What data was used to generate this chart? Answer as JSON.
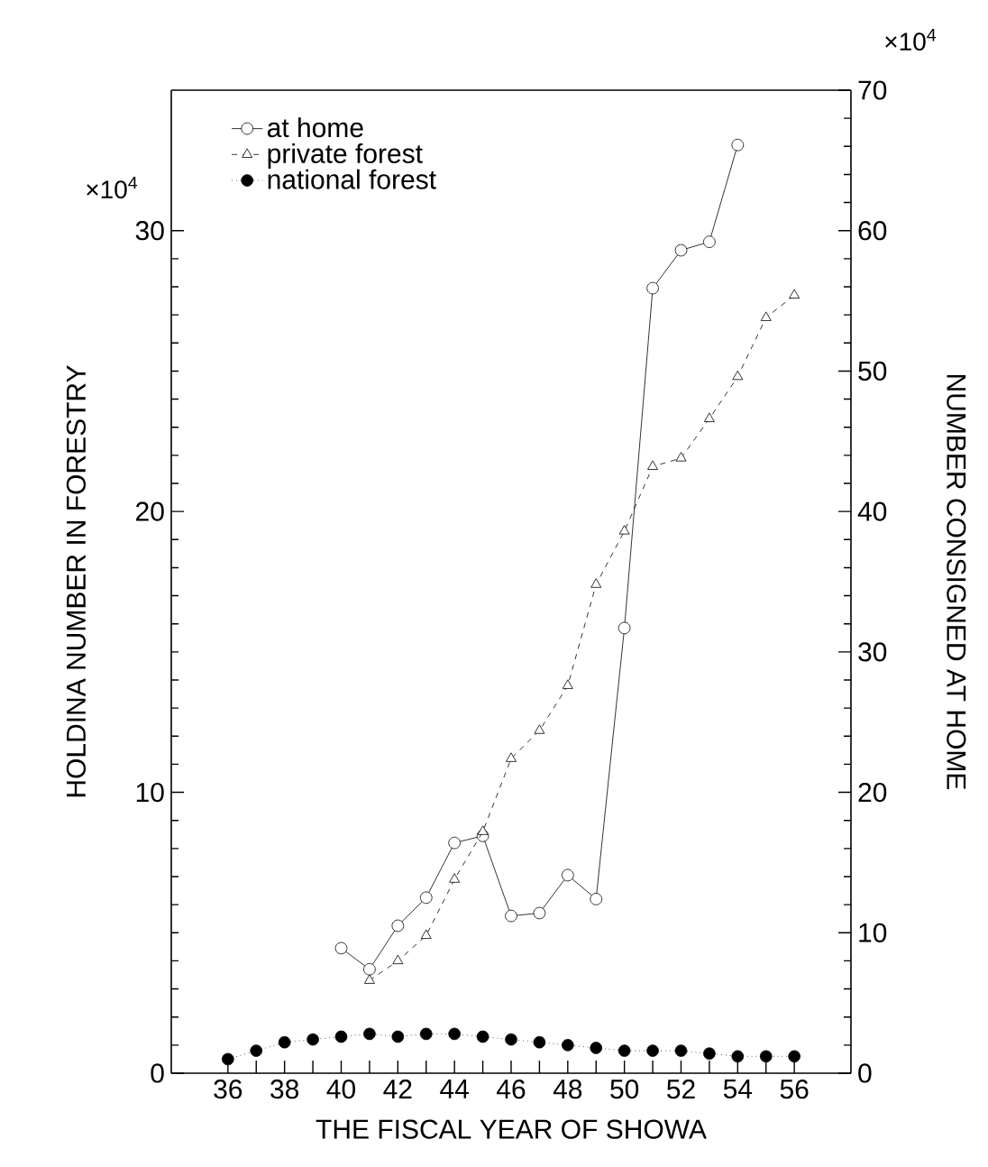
{
  "chart_data": {
    "type": "line",
    "xlabel": "THE FISCAL YEAR OF SHOWA",
    "ylabel": "HOLDINA NUMBER IN FORESTRY",
    "y2label": "NUMBER CONSIGNED AT HOME",
    "annotations": [
      "×10$^{4}$",
      "×10$^{4}$"
    ],
    "xlim": [
      34,
      58
    ],
    "xticks": [
      36,
      {
        "value": 37,
        "label": null
      },
      38,
      {
        "value": 39,
        "label": null
      },
      40,
      {
        "value": 41,
        "label": null
      },
      42,
      {
        "value": 43,
        "label": null
      },
      44,
      {
        "value": 45,
        "label": null
      },
      46,
      {
        "value": 47,
        "label": null
      },
      48,
      {
        "value": 49,
        "label": null
      },
      50,
      {
        "value": 51,
        "label": null
      },
      52,
      {
        "value": 53,
        "label": null
      },
      54,
      {
        "value": 55,
        "label": null
      },
      56
    ],
    "ylim": [
      0,
      35
    ],
    "yticks": [
      0,
      10,
      20,
      30
    ],
    "y2lim": [
      0,
      70
    ],
    "y2ticks": [
      0,
      10,
      20,
      30,
      40,
      50,
      60,
      70
    ],
    "legend": "top left",
    "grid": false,
    "series": [
      {
        "name": "at home",
        "color": "#000000",
        "axis": "y2",
        "marker": "circle",
        "line_style": "solid",
        "x": [
          40,
          41,
          42,
          43,
          44,
          45,
          46,
          47,
          48,
          49,
          50,
          51,
          52,
          53,
          54
        ],
        "values": [
          8.9,
          7.4,
          10.5,
          12.5,
          16.4,
          16.9,
          11.2,
          11.4,
          14.1,
          12.4,
          31.7,
          55.9,
          58.6,
          59.2,
          66.1
        ]
      },
      {
        "name": "private forest",
        "color": "#000000",
        "axis": "y",
        "marker": "triangle",
        "line_style": "dashed",
        "x": [
          41,
          42,
          43,
          44,
          45,
          46,
          47,
          48,
          49,
          50,
          51,
          52,
          53,
          54,
          55,
          56
        ],
        "values": [
          3.3,
          4.0,
          4.9,
          6.9,
          8.6,
          11.2,
          12.2,
          13.8,
          17.4,
          19.3,
          21.6,
          21.9,
          23.3,
          24.8,
          26.9,
          27.7
        ]
      },
      {
        "name": "national forest",
        "color": "#000000",
        "axis": "y",
        "marker": "circle",
        "line_style": "dotted",
        "x": [
          36,
          37,
          38,
          39,
          40,
          41,
          42,
          43,
          44,
          45,
          46,
          47,
          48,
          49,
          50,
          51,
          52,
          53,
          54,
          55,
          56
        ],
        "values": [
          0.5,
          0.8,
          1.1,
          1.2,
          1.3,
          1.4,
          1.3,
          1.4,
          1.4,
          1.3,
          1.2,
          1.1,
          1.0,
          0.9,
          0.8,
          0.8,
          0.8,
          0.7,
          0.6,
          0.6,
          0.6
        ]
      }
    ]
  }
}
